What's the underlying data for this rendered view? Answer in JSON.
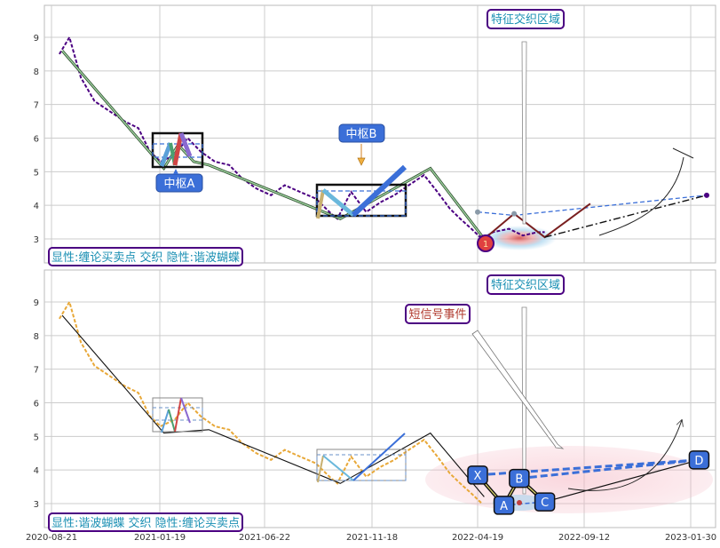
{
  "colors": {
    "price_top": "#4b0082",
    "price_bottom": "#e8a838",
    "grid": "#cccccc",
    "box_fill": "#3b6fd8",
    "box_text": "#ffffff",
    "tag_border": "#4b0082",
    "tag_text": "#1a8fb3",
    "signal_text": "#b03a2e"
  },
  "x_ticks": [
    "2020-08-21",
    "2021-01-19",
    "2021-06-22",
    "2021-11-18",
    "2022-04-19",
    "2022-09-12",
    "2023-01-30"
  ],
  "y_ticks": [
    "3",
    "4",
    "5",
    "6",
    "7",
    "8",
    "9"
  ],
  "top_panel": {
    "center_a_label": "中枢A",
    "center_b_label": "中枢B",
    "zone_label": "特征交织区域",
    "legend_label": "显性:缠论买卖点 交织 隐性:谐波蝴蝶",
    "marker_label": "1",
    "icons": [
      "bookmark-flag-icon",
      "wavy-arc-icon"
    ]
  },
  "bottom_panel": {
    "zone_label": "特征交织区域",
    "signal_label": "短信号事件",
    "legend_label": "显性:谐波蝴蝶 交织 隐性:缠论买卖点",
    "points": [
      "X",
      "A",
      "B",
      "C",
      "D"
    ],
    "icons": [
      "bookmark-flag-icon",
      "arc-arrow-icon"
    ]
  },
  "chart_data": [
    {
      "type": "line",
      "panel": "top",
      "x_tick_labels": [
        "2020-08-21",
        "2021-01-19",
        "2021-06-22",
        "2021-11-18",
        "2022-04-19",
        "2022-09-12",
        "2023-01-30"
      ],
      "ylim": [
        2.3,
        9.6
      ],
      "grid": true,
      "series": [
        {
          "style": "purple dashed price trace",
          "x": [
            "2020-09-01",
            "2020-09-15",
            "2020-10-01",
            "2020-10-20",
            "2020-11-10",
            "2020-12-01",
            "2020-12-20",
            "2021-01-05",
            "2021-01-20",
            "2021-02-10",
            "2021-03-01",
            "2021-03-20",
            "2021-04-10",
            "2021-05-01",
            "2021-05-20",
            "2021-06-10",
            "2021-07-01",
            "2021-07-20",
            "2021-08-10",
            "2021-09-01",
            "2021-09-20",
            "2021-10-01",
            "2021-10-20",
            "2021-11-10",
            "2021-12-01",
            "2021-12-20",
            "2022-01-10",
            "2022-02-01",
            "2022-02-20",
            "2022-03-10",
            "2022-03-25",
            "2022-04-10",
            "2022-04-25",
            "2022-05-10",
            "2022-06-01",
            "2022-06-20",
            "2022-07-10",
            "2022-07-20"
          ],
          "y": [
            8.5,
            9.0,
            7.8,
            7.1,
            6.8,
            6.5,
            6.3,
            5.6,
            5.3,
            5.5,
            6.0,
            5.6,
            5.3,
            5.2,
            4.8,
            4.5,
            4.3,
            4.6,
            4.4,
            4.2,
            3.8,
            3.6,
            4.4,
            3.8,
            4.1,
            4.3,
            4.6,
            4.9,
            4.4,
            3.9,
            3.6,
            3.3,
            3.0,
            3.2,
            3.3,
            3.1,
            3.2,
            3.2
          ]
        },
        {
          "style": "green trend stroke",
          "x": [
            "2020-09-05",
            "2021-01-25",
            "2021-02-15",
            "2021-03-10",
            "2021-04-01",
            "2021-10-05",
            "2022-02-10",
            "2022-04-28"
          ],
          "y": [
            8.6,
            5.1,
            5.8,
            5.3,
            5.2,
            3.6,
            5.1,
            3.0
          ]
        },
        {
          "style": "dark-red projected legs",
          "x": [
            "2022-04-28",
            "2022-06-08",
            "2022-07-20",
            "2022-09-20"
          ],
          "y": [
            3.0,
            3.75,
            3.05,
            4.05
          ]
        },
        {
          "style": "blue dashed projection",
          "x": [
            "2022-04-19",
            "2022-06-08",
            "2023-02-20"
          ],
          "y": [
            3.8,
            3.7,
            4.3
          ]
        }
      ],
      "annotations": [
        "中枢A",
        "中枢B",
        "特征交织区域",
        "显性:缠论买卖点 交织 隐性:谐波蝴蝶"
      ]
    },
    {
      "type": "line",
      "panel": "bottom",
      "x_tick_labels": [
        "2020-08-21",
        "2021-01-19",
        "2021-06-22",
        "2021-11-18",
        "2022-04-19",
        "2022-09-12",
        "2023-01-30"
      ],
      "ylim": [
        2.3,
        9.6
      ],
      "grid": true,
      "series": [
        {
          "style": "orange dashed price trace",
          "x": [
            "2020-09-01",
            "2020-09-15",
            "2020-10-01",
            "2020-10-20",
            "2020-11-10",
            "2020-12-01",
            "2020-12-20",
            "2021-01-05",
            "2021-01-20",
            "2021-02-10",
            "2021-03-01",
            "2021-03-20",
            "2021-04-10",
            "2021-05-01",
            "2021-05-20",
            "2021-06-10",
            "2021-07-01",
            "2021-07-20",
            "2021-08-10",
            "2021-09-01",
            "2021-09-20",
            "2021-10-01",
            "2021-10-20",
            "2021-11-10",
            "2021-12-01",
            "2021-12-20",
            "2022-01-10",
            "2022-02-01",
            "2022-02-20",
            "2022-03-10",
            "2022-03-25",
            "2022-04-10",
            "2022-04-25"
          ],
          "y": [
            8.5,
            9.0,
            7.8,
            7.1,
            6.8,
            6.5,
            6.3,
            5.6,
            5.3,
            5.5,
            6.0,
            5.6,
            5.3,
            5.2,
            4.8,
            4.5,
            4.3,
            4.6,
            4.4,
            4.2,
            3.8,
            3.6,
            4.4,
            3.8,
            4.1,
            4.3,
            4.6,
            4.9,
            4.4,
            3.9,
            3.6,
            3.3,
            3.0
          ]
        },
        {
          "style": "black trend stroke",
          "x": [
            "2020-09-05",
            "2021-01-25",
            "2021-04-01",
            "2021-10-05",
            "2022-02-10",
            "2022-04-28"
          ],
          "y": [
            8.6,
            5.1,
            5.2,
            3.6,
            5.1,
            3.2
          ]
        },
        {
          "style": "harmonic butterfly XABCD",
          "points": [
            "X",
            "A",
            "B",
            "C",
            "D"
          ],
          "x": [
            "2022-04-19",
            "2022-05-25",
            "2022-06-15",
            "2022-07-20",
            "2023-02-10"
          ],
          "y": [
            3.85,
            2.95,
            3.75,
            3.05,
            4.3
          ]
        }
      ],
      "annotations": [
        "特征交织区域",
        "短信号事件",
        "显性:谐波蝴蝶 交织 隐性:缠论买卖点"
      ]
    }
  ]
}
